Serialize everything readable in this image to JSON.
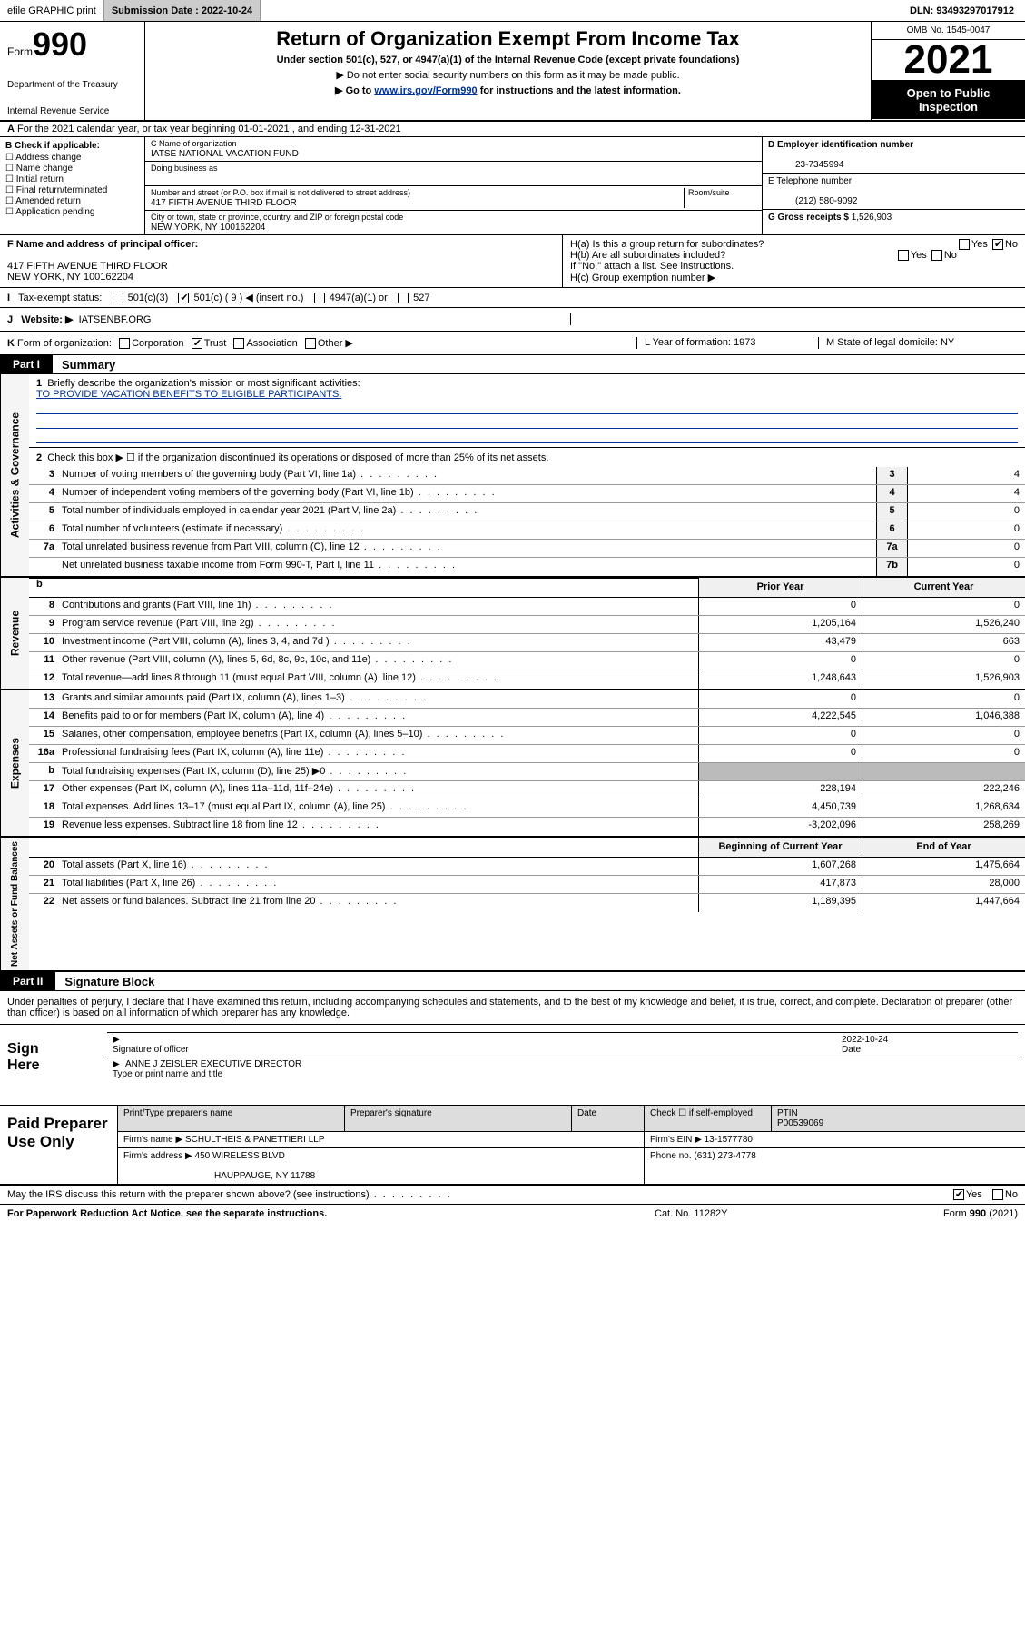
{
  "topbar": {
    "efile": "efile GRAPHIC print",
    "sub_label": "Submission Date : 2022-10-24",
    "dln": "DLN: 93493297017912"
  },
  "header": {
    "form_word": "Form",
    "form_num": "990",
    "title": "Return of Organization Exempt From Income Tax",
    "sub": "Under section 501(c), 527, or 4947(a)(1) of the Internal Revenue Code (except private foundations)",
    "note1": "▶ Do not enter social security numbers on this form as it may be made public.",
    "link_pre": "▶ Go to ",
    "link": "www.irs.gov/Form990",
    "link_post": " for instructions and the latest information.",
    "dept": "Department of the Treasury",
    "irs": "Internal Revenue Service",
    "omb": "OMB No. 1545-0047",
    "year": "2021",
    "open1": "Open to Public",
    "open2": "Inspection"
  },
  "rowA": {
    "text": "For the 2021 calendar year, or tax year beginning 01-01-2021   , and ending 12-31-2021",
    "prefix": "A"
  },
  "colB": {
    "title": "B Check if applicable:",
    "opts": [
      "Address change",
      "Name change",
      "Initial return",
      "Final return/terminated",
      "Amended return",
      "Application pending"
    ]
  },
  "colC": {
    "name_lbl": "C Name of organization",
    "name": "IATSE NATIONAL VACATION FUND",
    "dba_lbl": "Doing business as",
    "dba": "",
    "addr_lbl": "Number and street (or P.O. box if mail is not delivered to street address)",
    "room_lbl": "Room/suite",
    "addr": "417 FIFTH AVENUE THIRD FLOOR",
    "city_lbl": "City or town, state or province, country, and ZIP or foreign postal code",
    "city": "NEW YORK, NY  100162204"
  },
  "colD": {
    "ein_lbl": "D Employer identification number",
    "ein": "23-7345994",
    "tel_lbl": "E Telephone number",
    "tel": "(212) 580-9092",
    "gross_lbl": "G Gross receipts $",
    "gross": "1,526,903"
  },
  "rowF": {
    "lbl": "F  Name and address of principal officer:",
    "l1": "417 FIFTH AVENUE THIRD FLOOR",
    "l2": "NEW YORK, NY  100162204"
  },
  "rowH": {
    "ha": "H(a)  Is this a group return for subordinates?",
    "ha_yes": "Yes",
    "ha_no": "No",
    "hb": "H(b)  Are all subordinates included?",
    "hb_yes": "Yes",
    "hb_no": "No",
    "hb_note": "If \"No,\" attach a list. See instructions.",
    "hc": "H(c)  Group exemption number ▶"
  },
  "rowI": {
    "lbl": "Tax-exempt status:",
    "prefix": "I",
    "o1": "501(c)(3)",
    "o2": "501(c) ( 9 ) ◀ (insert no.)",
    "o3": "4947(a)(1) or",
    "o4": "527"
  },
  "rowJ": {
    "prefix": "J",
    "lbl": "Website: ▶",
    "val": "IATSENBF.ORG"
  },
  "rowK": {
    "prefix": "K",
    "lbl": "Form of organization:",
    "o1": "Corporation",
    "o2": "Trust",
    "o3": "Association",
    "o4": "Other ▶",
    "yr_lbl": "L Year of formation:",
    "yr": "1973",
    "dom_lbl": "M State of legal domicile:",
    "dom": "NY"
  },
  "parts": {
    "p1": "Part I",
    "p1t": "Summary",
    "p2": "Part II",
    "p2t": "Signature Block"
  },
  "mission": {
    "lbl": "Briefly describe the organization's mission or most significant activities:",
    "num": "1",
    "text": "TO PROVIDE VACATION BENEFITS TO ELIGIBLE PARTICIPANTS."
  },
  "line2": {
    "num": "2",
    "text": "Check this box ▶ ☐  if the organization discontinued its operations or disposed of more than 25% of its net assets."
  },
  "govlines": [
    {
      "n": "3",
      "d": "Number of voting members of the governing body (Part VI, line 1a)",
      "bn": "3",
      "v": "4"
    },
    {
      "n": "4",
      "d": "Number of independent voting members of the governing body (Part VI, line 1b)",
      "bn": "4",
      "v": "4"
    },
    {
      "n": "5",
      "d": "Total number of individuals employed in calendar year 2021 (Part V, line 2a)",
      "bn": "5",
      "v": "0"
    },
    {
      "n": "6",
      "d": "Total number of volunteers (estimate if necessary)",
      "bn": "6",
      "v": "0"
    },
    {
      "n": "7a",
      "d": "Total unrelated business revenue from Part VIII, column (C), line 12",
      "bn": "7a",
      "v": "0"
    },
    {
      "n": "",
      "d": "Net unrelated business taxable income from Form 990-T, Part I, line 11",
      "bn": "7b",
      "v": "0"
    }
  ],
  "colheaders": {
    "prior": "Prior Year",
    "curr": "Current Year"
  },
  "revenue": [
    {
      "n": "8",
      "d": "Contributions and grants (Part VIII, line 1h)",
      "p": "0",
      "c": "0"
    },
    {
      "n": "9",
      "d": "Program service revenue (Part VIII, line 2g)",
      "p": "1,205,164",
      "c": "1,526,240"
    },
    {
      "n": "10",
      "d": "Investment income (Part VIII, column (A), lines 3, 4, and 7d )",
      "p": "43,479",
      "c": "663"
    },
    {
      "n": "11",
      "d": "Other revenue (Part VIII, column (A), lines 5, 6d, 8c, 9c, 10c, and 11e)",
      "p": "0",
      "c": "0"
    },
    {
      "n": "12",
      "d": "Total revenue—add lines 8 through 11 (must equal Part VIII, column (A), line 12)",
      "p": "1,248,643",
      "c": "1,526,903"
    }
  ],
  "expenses": [
    {
      "n": "13",
      "d": "Grants and similar amounts paid (Part IX, column (A), lines 1–3)",
      "p": "0",
      "c": "0"
    },
    {
      "n": "14",
      "d": "Benefits paid to or for members (Part IX, column (A), line 4)",
      "p": "4,222,545",
      "c": "1,046,388"
    },
    {
      "n": "15",
      "d": "Salaries, other compensation, employee benefits (Part IX, column (A), lines 5–10)",
      "p": "0",
      "c": "0"
    },
    {
      "n": "16a",
      "d": "Professional fundraising fees (Part IX, column (A), line 11e)",
      "p": "0",
      "c": "0"
    },
    {
      "n": "b",
      "d": "Total fundraising expenses (Part IX, column (D), line 25) ▶0",
      "p": "",
      "c": "",
      "grey": true
    },
    {
      "n": "17",
      "d": "Other expenses (Part IX, column (A), lines 11a–11d, 11f–24e)",
      "p": "228,194",
      "c": "222,246"
    },
    {
      "n": "18",
      "d": "Total expenses. Add lines 13–17 (must equal Part IX, column (A), line 25)",
      "p": "4,450,739",
      "c": "1,268,634"
    },
    {
      "n": "19",
      "d": "Revenue less expenses. Subtract line 18 from line 12",
      "p": "-3,202,096",
      "c": "258,269"
    }
  ],
  "netheaders": {
    "beg": "Beginning of Current Year",
    "end": "End of Year"
  },
  "net": [
    {
      "n": "20",
      "d": "Total assets (Part X, line 16)",
      "p": "1,607,268",
      "c": "1,475,664"
    },
    {
      "n": "21",
      "d": "Total liabilities (Part X, line 26)",
      "p": "417,873",
      "c": "28,000"
    },
    {
      "n": "22",
      "d": "Net assets or fund balances. Subtract line 21 from line 20",
      "p": "1,189,395",
      "c": "1,447,664"
    }
  ],
  "vert": {
    "gov": "Activities & Governance",
    "rev": "Revenue",
    "exp": "Expenses",
    "net": "Net Assets or Fund Balances"
  },
  "sig": {
    "text": "Under penalties of perjury, I declare that I have examined this return, including accompanying schedules and statements, and to the best of my knowledge and belief, it is true, correct, and complete. Declaration of preparer (other than officer) is based on all information of which preparer has any knowledge.",
    "sign_here": "Sign Here",
    "sig_of_officer": "Signature of officer",
    "date_lbl": "Date",
    "date": "2022-10-24",
    "name": "ANNE J ZEISLER  EXECUTIVE DIRECTOR",
    "name_lbl": "Type or print name and title"
  },
  "prep": {
    "title": "Paid Preparer Use Only",
    "h1": "Print/Type preparer's name",
    "h2": "Preparer's signature",
    "h3": "Date",
    "h4_pre": "Check ☐ if self-employed",
    "h5": "PTIN",
    "ptin": "P00539069",
    "firm_lbl": "Firm's name    ▶",
    "firm": "SCHULTHEIS & PANETTIERI LLP",
    "ein_lbl": "Firm's EIN ▶",
    "ein": "13-1577780",
    "addr_lbl": "Firm's address ▶",
    "addr1": "450 WIRELESS BLVD",
    "addr2": "HAUPPAUGE, NY  11788",
    "phone_lbl": "Phone no.",
    "phone": "(631) 273-4778"
  },
  "discuss": {
    "q": "May the IRS discuss this return with the preparer shown above? (see instructions)",
    "yes": "Yes",
    "no": "No"
  },
  "footer": {
    "l": "For Paperwork Reduction Act Notice, see the separate instructions.",
    "m": "Cat. No. 11282Y",
    "r": "Form 990 (2021)"
  }
}
